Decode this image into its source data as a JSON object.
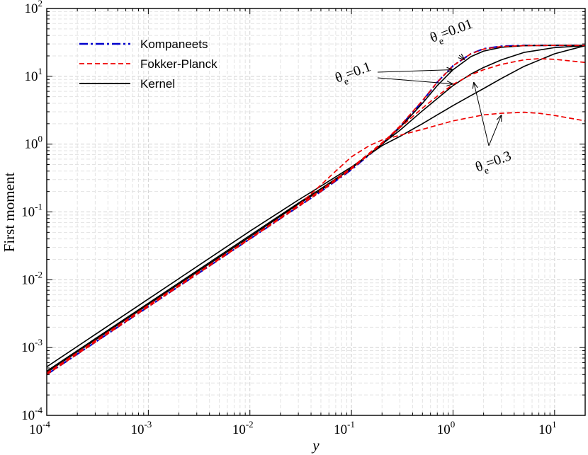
{
  "chart_data": {
    "type": "line",
    "title": "",
    "xlabel": "y",
    "ylabel": "First moment",
    "xscale": "log",
    "yscale": "log",
    "xlim": [
      0.0001,
      20
    ],
    "ylim": [
      0.0001,
      100
    ],
    "grid": true,
    "legend_position": "top-left",
    "x_ticks": [
      {
        "base": "10",
        "exp": "-4"
      },
      {
        "base": "10",
        "exp": "-3"
      },
      {
        "base": "10",
        "exp": "-2"
      },
      {
        "base": "10",
        "exp": "-1"
      },
      {
        "base": "10",
        "exp": "0"
      },
      {
        "base": "10",
        "exp": "1"
      }
    ],
    "y_ticks": [
      {
        "base": "10",
        "exp": "-4"
      },
      {
        "base": "10",
        "exp": "-3"
      },
      {
        "base": "10",
        "exp": "-2"
      },
      {
        "base": "10",
        "exp": "-1"
      },
      {
        "base": "10",
        "exp": "0"
      },
      {
        "base": "10",
        "exp": "1"
      },
      {
        "base": "10",
        "exp": "2"
      }
    ],
    "x_tick_values": [
      0.0001,
      0.001,
      0.01,
      0.1,
      1,
      10
    ],
    "y_tick_values": [
      0.0001,
      0.001,
      0.01,
      0.1,
      1,
      10,
      100
    ],
    "legend": [
      {
        "label": "Kompaneets",
        "color": "#0000cc",
        "style": "dashdot"
      },
      {
        "label": "Fokker-Planck",
        "color": "#ee0000",
        "style": "dashed"
      },
      {
        "label": "Kernel",
        "color": "#000000",
        "style": "solid"
      }
    ],
    "annotations": [
      {
        "theta": "θ",
        "sub": "e",
        "text": "=0.01",
        "targets": [
          [
            1.3,
            17.5
          ]
        ]
      },
      {
        "theta": "θ",
        "sub": "e",
        "text": "=0.1",
        "targets": [
          [
            1.0,
            12.5
          ],
          [
            1.0,
            7.7
          ]
        ]
      },
      {
        "theta": "θ",
        "sub": "e",
        "text": "=0.3",
        "targets": [
          [
            1.6,
            8.2
          ],
          [
            3.0,
            2.7
          ]
        ]
      }
    ],
    "series": [
      {
        "color": "#0000cc",
        "style": "dashdot",
        "width": 2.2,
        "points": [
          [
            0.0001,
            0.0004
          ],
          [
            0.001,
            0.004
          ],
          [
            0.01,
            0.04
          ],
          [
            0.03,
            0.12
          ],
          [
            0.05,
            0.2
          ],
          [
            0.1,
            0.42
          ],
          [
            0.2,
            1.0
          ],
          [
            0.3,
            1.8
          ],
          [
            0.5,
            4.3
          ],
          [
            0.7,
            8.2
          ],
          [
            1.0,
            14.3
          ],
          [
            1.5,
            21.5
          ],
          [
            2.0,
            25.5
          ],
          [
            3.0,
            27.8
          ],
          [
            5.0,
            28.5
          ],
          [
            10,
            28.6
          ],
          [
            20,
            28.6
          ]
        ]
      },
      {
        "color": "#000000",
        "style": "solid",
        "width": 1.6,
        "points": [
          [
            0.0001,
            0.00043
          ],
          [
            0.001,
            0.0043
          ],
          [
            0.01,
            0.043
          ],
          [
            0.03,
            0.13
          ],
          [
            0.05,
            0.21
          ],
          [
            0.1,
            0.44
          ],
          [
            0.2,
            1.0
          ],
          [
            0.3,
            1.75
          ],
          [
            0.5,
            4.0
          ],
          [
            0.7,
            7.3
          ],
          [
            1.0,
            12.5
          ],
          [
            1.5,
            19.5
          ],
          [
            2.0,
            23.5
          ],
          [
            3.0,
            26.8
          ],
          [
            5.0,
            28.3
          ],
          [
            10,
            28.6
          ],
          [
            20,
            28.6
          ]
        ]
      },
      {
        "color": "#000000",
        "style": "solid",
        "width": 1.6,
        "points": [
          [
            0.0001,
            0.00045
          ],
          [
            0.001,
            0.0045
          ],
          [
            0.01,
            0.045
          ],
          [
            0.03,
            0.135
          ],
          [
            0.05,
            0.22
          ],
          [
            0.1,
            0.44
          ],
          [
            0.2,
            1.0
          ],
          [
            0.3,
            1.6
          ],
          [
            0.5,
            3.1
          ],
          [
            0.7,
            4.7
          ],
          [
            1.0,
            7.3
          ],
          [
            1.5,
            10.8
          ],
          [
            2.0,
            13.5
          ],
          [
            3.0,
            17.5
          ],
          [
            5.0,
            22.5
          ],
          [
            10,
            26.5
          ],
          [
            20,
            28.3
          ]
        ]
      },
      {
        "color": "#000000",
        "style": "solid",
        "width": 1.6,
        "points": [
          [
            0.0001,
            0.00052
          ],
          [
            0.001,
            0.0052
          ],
          [
            0.01,
            0.052
          ],
          [
            0.03,
            0.15
          ],
          [
            0.05,
            0.24
          ],
          [
            0.1,
            0.46
          ],
          [
            0.2,
            0.95
          ],
          [
            0.3,
            1.3
          ],
          [
            0.5,
            2.0
          ],
          [
            0.7,
            2.7
          ],
          [
            1.0,
            3.7
          ],
          [
            1.5,
            5.2
          ],
          [
            2.0,
            6.6
          ],
          [
            3.0,
            9.3
          ],
          [
            5.0,
            14.0
          ],
          [
            10,
            21.5
          ],
          [
            20,
            28.3
          ]
        ]
      },
      {
        "color": "#ee0000",
        "style": "dashed",
        "width": 1.7,
        "points": [
          [
            0.0001,
            0.0004
          ],
          [
            0.001,
            0.004
          ],
          [
            0.01,
            0.04
          ],
          [
            0.03,
            0.12
          ],
          [
            0.05,
            0.2
          ],
          [
            0.1,
            0.43
          ],
          [
            0.2,
            1.02
          ],
          [
            0.3,
            1.85
          ],
          [
            0.5,
            4.4
          ],
          [
            0.7,
            8.2
          ],
          [
            1.0,
            14.3
          ],
          [
            1.5,
            21.5
          ],
          [
            2.0,
            25.2
          ],
          [
            3.0,
            27.5
          ],
          [
            5.0,
            28.3
          ],
          [
            10,
            28.5
          ],
          [
            20,
            28.5
          ]
        ]
      },
      {
        "color": "#ee0000",
        "style": "dashed",
        "width": 1.7,
        "points": [
          [
            0.0001,
            0.00042
          ],
          [
            0.001,
            0.0042
          ],
          [
            0.01,
            0.041
          ],
          [
            0.03,
            0.125
          ],
          [
            0.05,
            0.21
          ],
          [
            0.1,
            0.45
          ],
          [
            0.2,
            1.05
          ],
          [
            0.3,
            1.75
          ],
          [
            0.5,
            3.4
          ],
          [
            0.7,
            5.1
          ],
          [
            1.0,
            7.6
          ],
          [
            1.5,
            10.5
          ],
          [
            2.0,
            12.5
          ],
          [
            3.0,
            15.0
          ],
          [
            5.0,
            17.5
          ],
          [
            7.0,
            18.2
          ],
          [
            10,
            17.8
          ],
          [
            20,
            16.0
          ]
        ]
      },
      {
        "color": "#ee0000",
        "style": "dashed",
        "width": 1.7,
        "points": [
          [
            0.0001,
            0.00042
          ],
          [
            0.001,
            0.0042
          ],
          [
            0.01,
            0.041
          ],
          [
            0.03,
            0.125
          ],
          [
            0.05,
            0.25
          ],
          [
            0.07,
            0.4
          ],
          [
            0.1,
            0.65
          ],
          [
            0.15,
            0.95
          ],
          [
            0.2,
            1.15
          ],
          [
            0.3,
            1.35
          ],
          [
            0.5,
            1.65
          ],
          [
            0.7,
            1.9
          ],
          [
            1.0,
            2.2
          ],
          [
            2.0,
            2.7
          ],
          [
            3.0,
            2.85
          ],
          [
            5.0,
            2.95
          ],
          [
            7.0,
            2.85
          ],
          [
            10,
            2.65
          ],
          [
            20,
            2.2
          ]
        ]
      }
    ]
  }
}
